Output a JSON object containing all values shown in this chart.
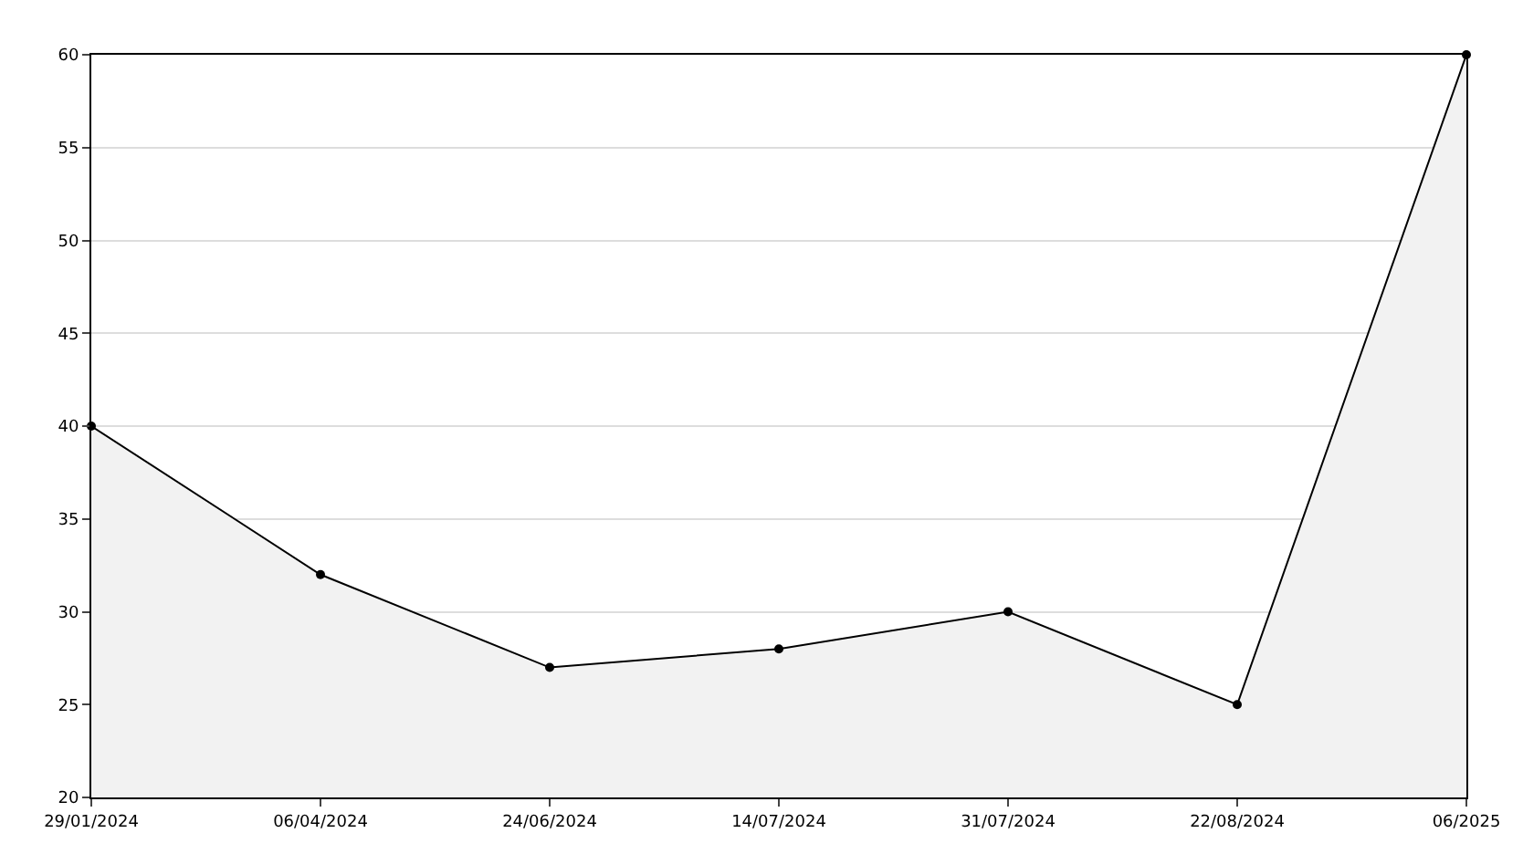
{
  "chart_data": {
    "type": "area",
    "categories": [
      "29/01/2024",
      "06/04/2024",
      "24/06/2024",
      "14/07/2024",
      "31/07/2024",
      "22/08/2024",
      "06/2025"
    ],
    "series": [
      {
        "color": "#000000",
        "values": [
          40,
          32,
          27,
          28,
          30,
          25,
          60
        ]
      }
    ],
    "ylim": [
      20,
      60
    ],
    "yticks": [
      20,
      25,
      30,
      35,
      40,
      45,
      50,
      55,
      60
    ],
    "grid": "y",
    "marker": "circle",
    "line_style": "solid",
    "legend": false
  }
}
